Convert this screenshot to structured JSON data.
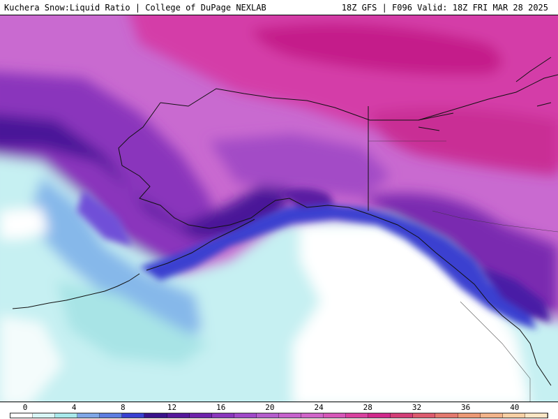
{
  "header": {
    "title": "Kuchera Snow:Liquid Ratio | College of DuPage NEXLAB",
    "run_info": "18Z GFS | F096 Valid: 18Z FRI MAR 28 2025"
  },
  "legend": {
    "ticks": [
      "0",
      "4",
      "8",
      "12",
      "16",
      "20",
      "24",
      "28",
      "32",
      "36",
      "40"
    ],
    "colors": [
      "#ffffff",
      "#d8f5f5",
      "#a8e8ea",
      "#7fa6e6",
      "#5d7ce0",
      "#3a3fd0",
      "#3a128a",
      "#55179a",
      "#6e22aa",
      "#8a36bc",
      "#a048c8",
      "#b45ccc",
      "#c661cc",
      "#d064c8",
      "#d656b8",
      "#d8409e",
      "#d0288a",
      "#d23d76",
      "#dc5a6e",
      "#e3786e",
      "#eb9875",
      "#f2b38a",
      "#f7cfa4",
      "#fbe5c4"
    ]
  },
  "map": {
    "region": "Alaska"
  }
}
